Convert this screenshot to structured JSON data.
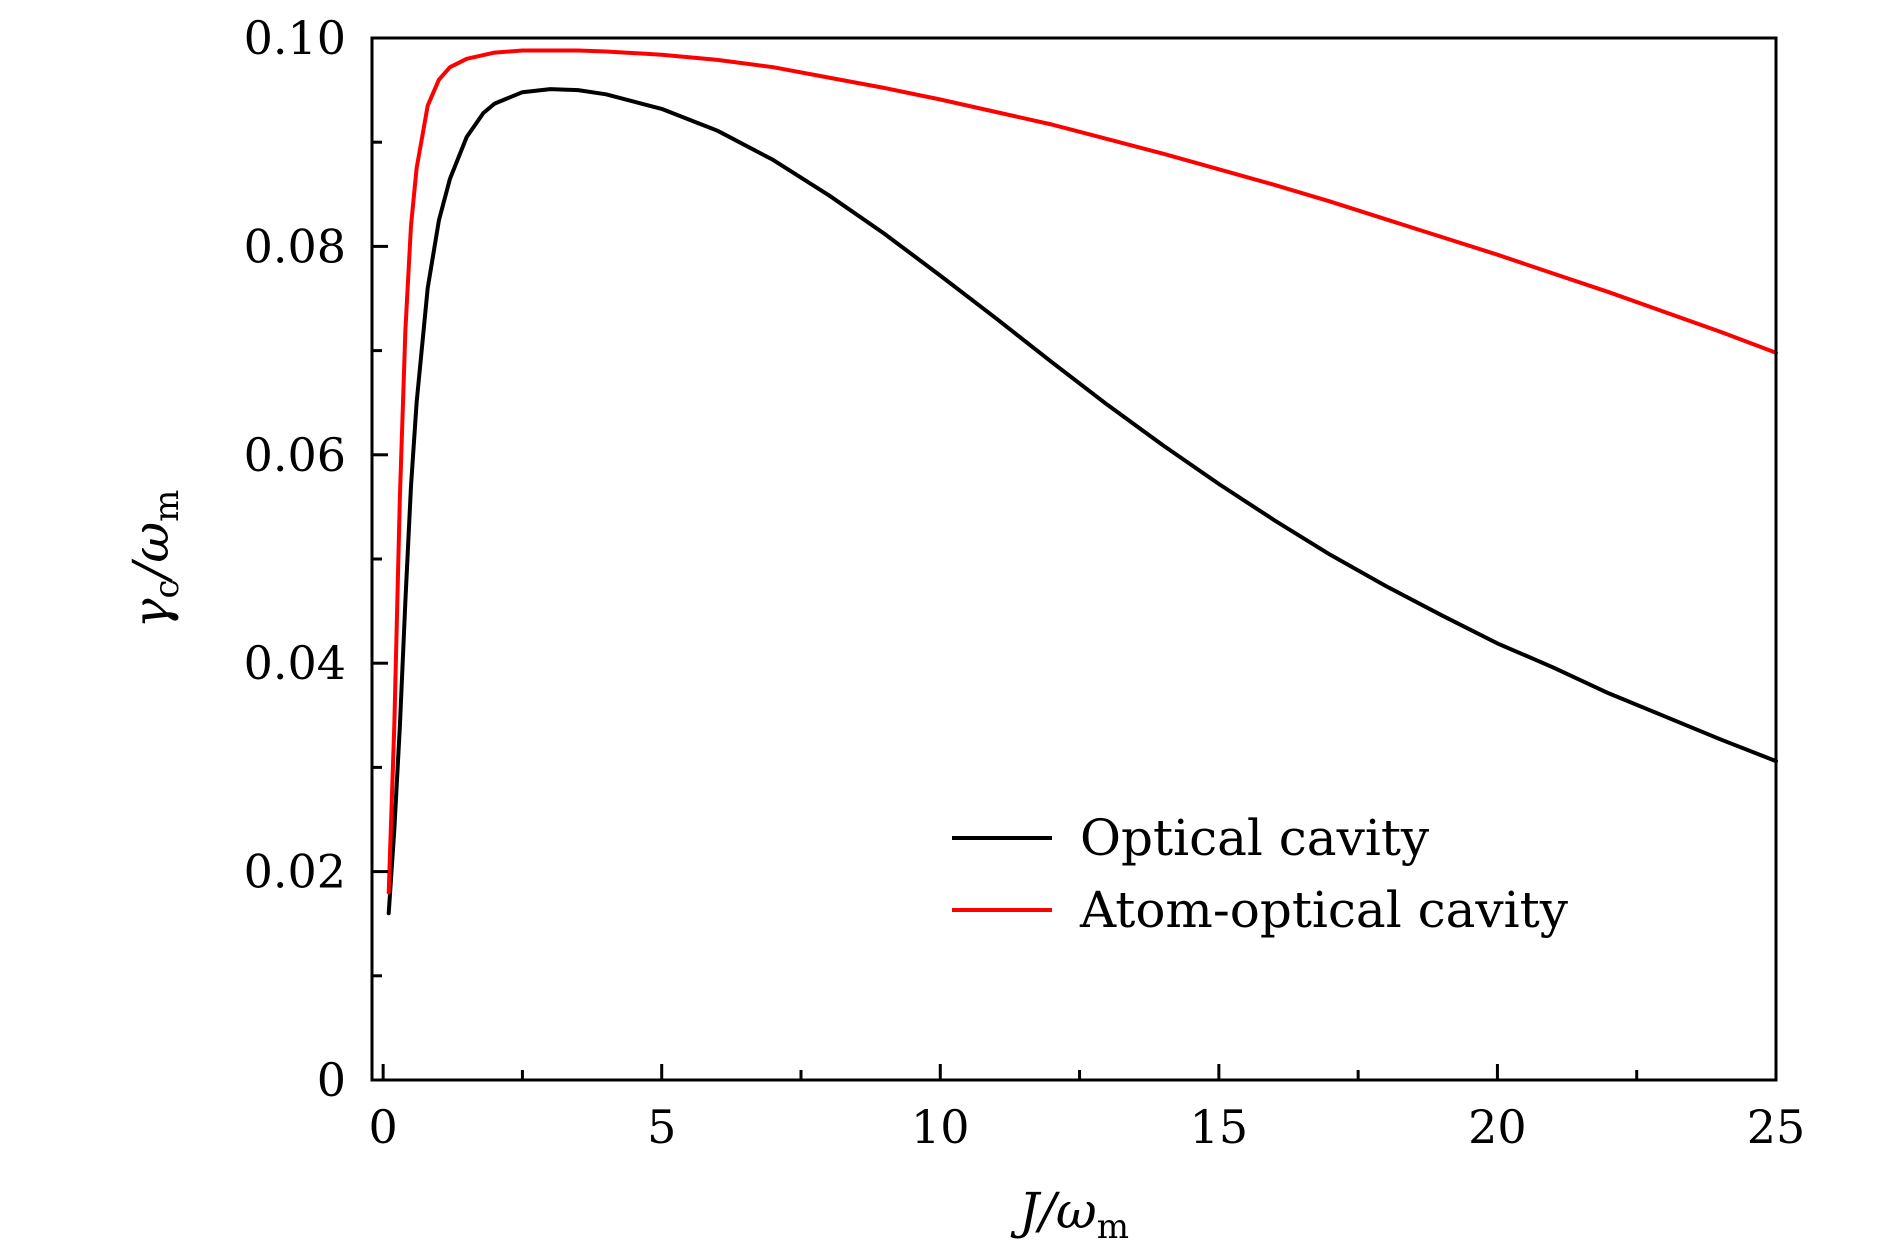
{
  "chart_data": {
    "type": "line",
    "title": "",
    "xlabel": {
      "main": "J/ω",
      "sub": "m"
    },
    "ylabel": {
      "main": "γ",
      "sub1": "c",
      "mid": "/ω",
      "sub2": "m"
    },
    "xlim": [
      -0.2,
      25
    ],
    "ylim": [
      0,
      0.1
    ],
    "xticks": [
      0,
      5,
      10,
      15,
      20,
      25
    ],
    "xtick_labels": [
      "0",
      "5",
      "10",
      "15",
      "20",
      "25"
    ],
    "xminor": [
      2.5,
      7.5,
      12.5,
      17.5,
      22.5
    ],
    "yticks": [
      0,
      0.02,
      0.04,
      0.06,
      0.08,
      0.1
    ],
    "ytick_labels": [
      "0",
      "0.02",
      "0.04",
      "0.06",
      "0.08",
      "0.10"
    ],
    "yminor": [
      0.01,
      0.03,
      0.05,
      0.07,
      0.09
    ],
    "grid": false,
    "legend_position": "bottom-right",
    "series": [
      {
        "name": "Optical cavity",
        "color": "#000000",
        "x": [
          0.1,
          0.2,
          0.3,
          0.4,
          0.5,
          0.6,
          0.8,
          1.0,
          1.2,
          1.5,
          1.8,
          2.0,
          2.5,
          3.0,
          3.5,
          4.0,
          5.0,
          6.0,
          7.0,
          8.0,
          9.0,
          10.0,
          11.0,
          12.0,
          13.0,
          14.0,
          15.0,
          16.0,
          17.0,
          18.0,
          19.0,
          20.0,
          21.0,
          22.0,
          23.0,
          24.0,
          25.0
        ],
        "y": [
          0.016,
          0.024,
          0.034,
          0.046,
          0.057,
          0.065,
          0.076,
          0.0825,
          0.0865,
          0.0905,
          0.0928,
          0.0937,
          0.0948,
          0.0951,
          0.095,
          0.0946,
          0.0932,
          0.0911,
          0.0883,
          0.0849,
          0.0812,
          0.0772,
          0.0731,
          0.0689,
          0.0648,
          0.0609,
          0.0572,
          0.0537,
          0.0504,
          0.0474,
          0.0446,
          0.0419,
          0.0396,
          0.0371,
          0.0349,
          0.0327,
          0.0306
        ]
      },
      {
        "name": "Atom-optical cavity",
        "color": "#ff0000",
        "x": [
          0.1,
          0.2,
          0.3,
          0.4,
          0.5,
          0.6,
          0.8,
          1.0,
          1.2,
          1.5,
          2.0,
          2.5,
          3.0,
          3.5,
          4.0,
          5.0,
          6.0,
          7.0,
          8.0,
          9.0,
          10.0,
          11.0,
          12.0,
          13.0,
          14.0,
          15.0,
          16.0,
          17.0,
          18.0,
          19.0,
          20.0,
          21.0,
          22.0,
          23.0,
          24.0,
          25.0
        ],
        "y": [
          0.018,
          0.034,
          0.056,
          0.072,
          0.082,
          0.0875,
          0.0935,
          0.096,
          0.0972,
          0.098,
          0.0986,
          0.0988,
          0.0988,
          0.0988,
          0.0987,
          0.0984,
          0.0979,
          0.0972,
          0.0962,
          0.0952,
          0.0941,
          0.0929,
          0.0917,
          0.0903,
          0.0889,
          0.0874,
          0.0859,
          0.0843,
          0.0826,
          0.0809,
          0.0792,
          0.0774,
          0.0756,
          0.0737,
          0.0718,
          0.0698
        ]
      }
    ]
  }
}
